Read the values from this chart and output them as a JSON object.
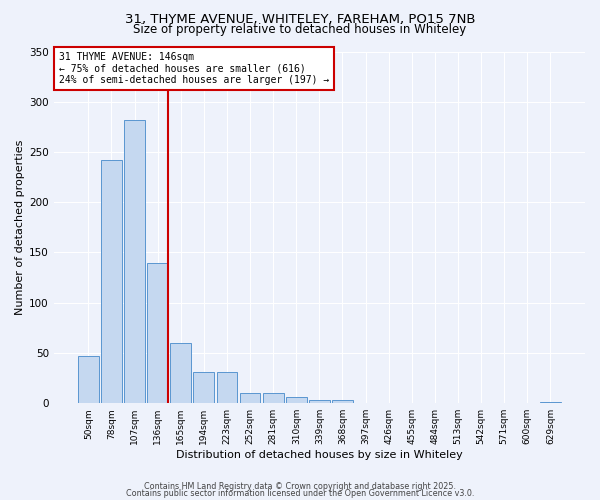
{
  "title_line1": "31, THYME AVENUE, WHITELEY, FAREHAM, PO15 7NB",
  "title_line2": "Size of property relative to detached houses in Whiteley",
  "xlabel": "Distribution of detached houses by size in Whiteley",
  "ylabel": "Number of detached properties",
  "categories": [
    "50sqm",
    "78sqm",
    "107sqm",
    "136sqm",
    "165sqm",
    "194sqm",
    "223sqm",
    "252sqm",
    "281sqm",
    "310sqm",
    "339sqm",
    "368sqm",
    "397sqm",
    "426sqm",
    "455sqm",
    "484sqm",
    "513sqm",
    "542sqm",
    "571sqm",
    "600sqm",
    "629sqm"
  ],
  "values": [
    47,
    242,
    282,
    140,
    60,
    31,
    31,
    10,
    10,
    6,
    3,
    3,
    0,
    0,
    0,
    0,
    0,
    0,
    0,
    0,
    1
  ],
  "bar_color": "#c5d8f0",
  "bar_edge_color": "#5a96d0",
  "marker_index": 3,
  "marker_color": "#cc0000",
  "annotation_text": "31 THYME AVENUE: 146sqm\n← 75% of detached houses are smaller (616)\n24% of semi-detached houses are larger (197) →",
  "annotation_box_color": "#ffffff",
  "annotation_box_edge": "#cc0000",
  "ylim": [
    0,
    350
  ],
  "yticks": [
    0,
    50,
    100,
    150,
    200,
    250,
    300,
    350
  ],
  "background_color": "#eef2fb",
  "grid_color": "#ffffff",
  "footer_line1": "Contains HM Land Registry data © Crown copyright and database right 2025.",
  "footer_line2": "Contains public sector information licensed under the Open Government Licence v3.0."
}
